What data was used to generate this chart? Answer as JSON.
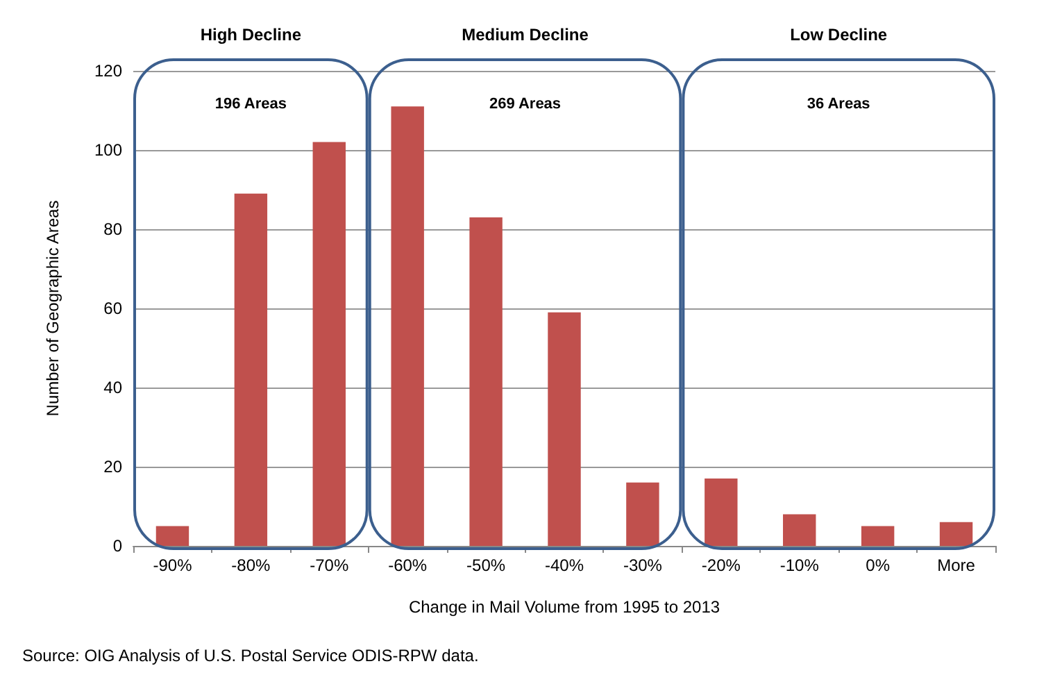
{
  "chart_data": {
    "type": "bar",
    "xlabel": "Change in Mail Volume from 1995 to 2013",
    "ylabel": "Number of Geographic Areas",
    "categories": [
      "-90%",
      "-80%",
      "-70%",
      "-60%",
      "-50%",
      "-40%",
      "-30%",
      "-20%",
      "-10%",
      "0%",
      "More"
    ],
    "values": [
      5,
      89,
      102,
      111,
      83,
      59,
      16,
      17,
      8,
      5,
      6
    ],
    "color": "#c0504d",
    "ylim": [
      0,
      120
    ],
    "yticks": [
      0,
      20,
      40,
      60,
      80,
      100,
      120
    ],
    "grid": "y",
    "annotations": [
      "High Decline",
      "Medium Decline",
      "Low Decline",
      "196 Areas",
      "269 Areas",
      "36 Areas",
      "Source: OIG Analysis of U.S. Postal Service ODIS-RPW data."
    ]
  }
}
